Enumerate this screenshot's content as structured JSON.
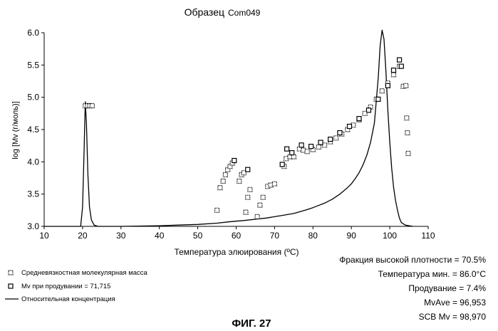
{
  "figure_label": "ФИГ. 27",
  "chart_data": {
    "type": "line",
    "title": "Образец",
    "title_sample": "Com049",
    "xlabel": "Температура элюирования (ºC)",
    "ylabel": "log [Mv (г/моль)]",
    "xlim": [
      10,
      110
    ],
    "ylim": [
      3.0,
      6.0
    ],
    "x_ticks": [
      "10",
      "20",
      "30",
      "40",
      "50",
      "60",
      "70",
      "80",
      "90",
      "100",
      "110"
    ],
    "y_ticks": [
      "3.0",
      "3.5",
      "4.0",
      "4.5",
      "5.0",
      "5.5",
      "6.0"
    ],
    "grid": false,
    "legend": [
      {
        "label": "Средневязкостная молекулярная масса",
        "marker": "dotted-square"
      },
      {
        "label": "Mv  при продувании  = 71,715",
        "marker": "open-square"
      },
      {
        "label": "Относительная концентрация",
        "marker": "line"
      }
    ],
    "stats": [
      "Фракция высокой плотности = 70.5%",
      "Температура мин. = 86.0°C",
      "Продувание   = 7.4%",
      "MvAve = 96,953",
      "SCB Mv = 98,970"
    ],
    "series": [
      {
        "name": "Относительная концентрация",
        "style": "line",
        "x": [
          10,
          19.5,
          20.0,
          20.4,
          20.7,
          21.0,
          21.4,
          21.8,
          22.3,
          23.0,
          24.0,
          30,
          40,
          45,
          50,
          55,
          58,
          60,
          62,
          65,
          68,
          70,
          72,
          75,
          78,
          80,
          83,
          85,
          87,
          89,
          90,
          91,
          92,
          93,
          94,
          95,
          96,
          97,
          97.5,
          98.0,
          98.5,
          99.0,
          99.5,
          100,
          100.5,
          101,
          101.5,
          102,
          102.5,
          103,
          104,
          106
        ],
        "y": [
          3.0,
          3.0,
          3.3,
          4.2,
          4.93,
          4.6,
          3.8,
          3.3,
          3.1,
          3.02,
          3.0,
          3.0,
          3.01,
          3.02,
          3.03,
          3.05,
          3.07,
          3.08,
          3.09,
          3.11,
          3.13,
          3.15,
          3.17,
          3.2,
          3.25,
          3.29,
          3.36,
          3.42,
          3.5,
          3.6,
          3.66,
          3.74,
          3.83,
          3.95,
          4.1,
          4.3,
          4.6,
          5.3,
          5.8,
          6.04,
          5.9,
          5.4,
          4.8,
          4.3,
          3.9,
          3.6,
          3.4,
          3.25,
          3.13,
          3.06,
          3.02,
          3.0
        ]
      },
      {
        "name": "Средневязкостная молекулярная масса",
        "style": "dotted-square",
        "x": [
          20.7,
          21.3,
          21.9,
          22.5,
          55.0,
          55.8,
          56.6,
          57.2,
          57.8,
          58.4,
          59.0,
          60.8,
          61.4,
          62.0,
          62.5,
          63.0,
          63.6,
          65.5,
          66.2,
          67.0,
          68.2,
          69.0,
          70.0,
          72.5,
          73.0,
          74.0,
          75.0,
          76.5,
          77.5,
          78.5,
          80.0,
          81.5,
          83.0,
          84.5,
          86.0,
          87.5,
          89.0,
          90.5,
          92.0,
          93.5,
          95.0,
          96.5,
          98.0,
          99.5,
          101.0,
          102.5,
          103.5,
          104.2,
          104.4,
          104.6,
          104.8
        ],
        "y": [
          4.87,
          4.87,
          4.87,
          4.87,
          3.25,
          3.6,
          3.7,
          3.8,
          3.88,
          3.93,
          3.98,
          3.7,
          3.8,
          3.83,
          3.22,
          3.45,
          3.57,
          3.15,
          3.33,
          3.45,
          3.62,
          3.64,
          3.66,
          3.93,
          4.05,
          4.08,
          4.08,
          4.2,
          4.18,
          4.16,
          4.19,
          4.23,
          4.26,
          4.31,
          4.37,
          4.43,
          4.5,
          4.57,
          4.65,
          4.75,
          4.85,
          4.97,
          5.1,
          5.22,
          5.35,
          5.48,
          5.17,
          5.18,
          4.68,
          4.45,
          4.13
        ]
      },
      {
        "name": "Mv  при продувании  = 71,715",
        "style": "open-square",
        "x": [
          59.5,
          63.0,
          72.0,
          73.2,
          74.5,
          77.0,
          79.5,
          82.0,
          84.5,
          87.0,
          89.5,
          92.0,
          94.5,
          97.0,
          99.5,
          101.0,
          102.5,
          103.0
        ],
        "y": [
          4.02,
          3.88,
          3.96,
          4.2,
          4.14,
          4.26,
          4.24,
          4.3,
          4.35,
          4.45,
          4.55,
          4.67,
          4.8,
          4.97,
          5.18,
          5.42,
          5.58,
          5.48
        ]
      }
    ]
  }
}
